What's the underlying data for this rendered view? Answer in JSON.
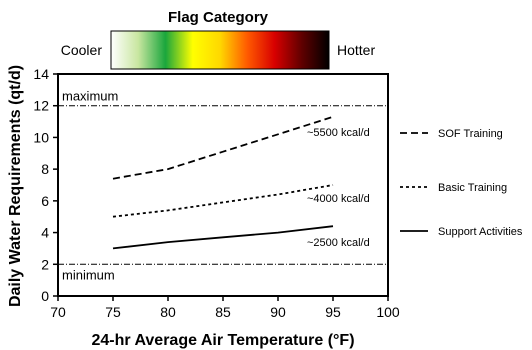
{
  "chart_data": {
    "type": "line",
    "title": "Flag Category",
    "colorbar": {
      "left_label": "Cooler",
      "right_label": "Hotter",
      "colors": [
        "#ffffff",
        "#c8e6a0",
        "#1aa63c",
        "#ffff00",
        "#ffd800",
        "#ff5a00",
        "#d80000",
        "#600000",
        "#000000"
      ]
    },
    "xlabel": "24-hr Average Air Temperature (°F)",
    "ylabel": "Daily Water Requirements (qt/d)",
    "xlim": [
      70,
      100
    ],
    "ylim": [
      0,
      14
    ],
    "xticks": [
      "70",
      "75",
      "80",
      "85",
      "90",
      "95",
      "100"
    ],
    "yticks": [
      "0",
      "2",
      "4",
      "6",
      "8",
      "10",
      "12",
      "14"
    ],
    "reference_lines": [
      {
        "label": "maximum",
        "y": 12
      },
      {
        "label": "minimum",
        "y": 2
      }
    ],
    "series": [
      {
        "name": "SOF Training",
        "annotation": "~5500 kcal/d",
        "style": "dashed",
        "x": [
          75,
          80,
          85,
          90,
          95
        ],
        "y": [
          7.4,
          8.0,
          9.1,
          10.2,
          11.3
        ]
      },
      {
        "name": "Basic Training",
        "annotation": "~4000 kcal/d",
        "style": "dotted",
        "x": [
          75,
          80,
          85,
          90,
          95
        ],
        "y": [
          5.0,
          5.4,
          5.9,
          6.4,
          7.0
        ]
      },
      {
        "name": "Support Activities",
        "annotation": "~2500 kcal/d",
        "style": "solid",
        "x": [
          75,
          80,
          85,
          90,
          95
        ],
        "y": [
          3.0,
          3.4,
          3.7,
          4.0,
          4.4
        ]
      }
    ]
  }
}
